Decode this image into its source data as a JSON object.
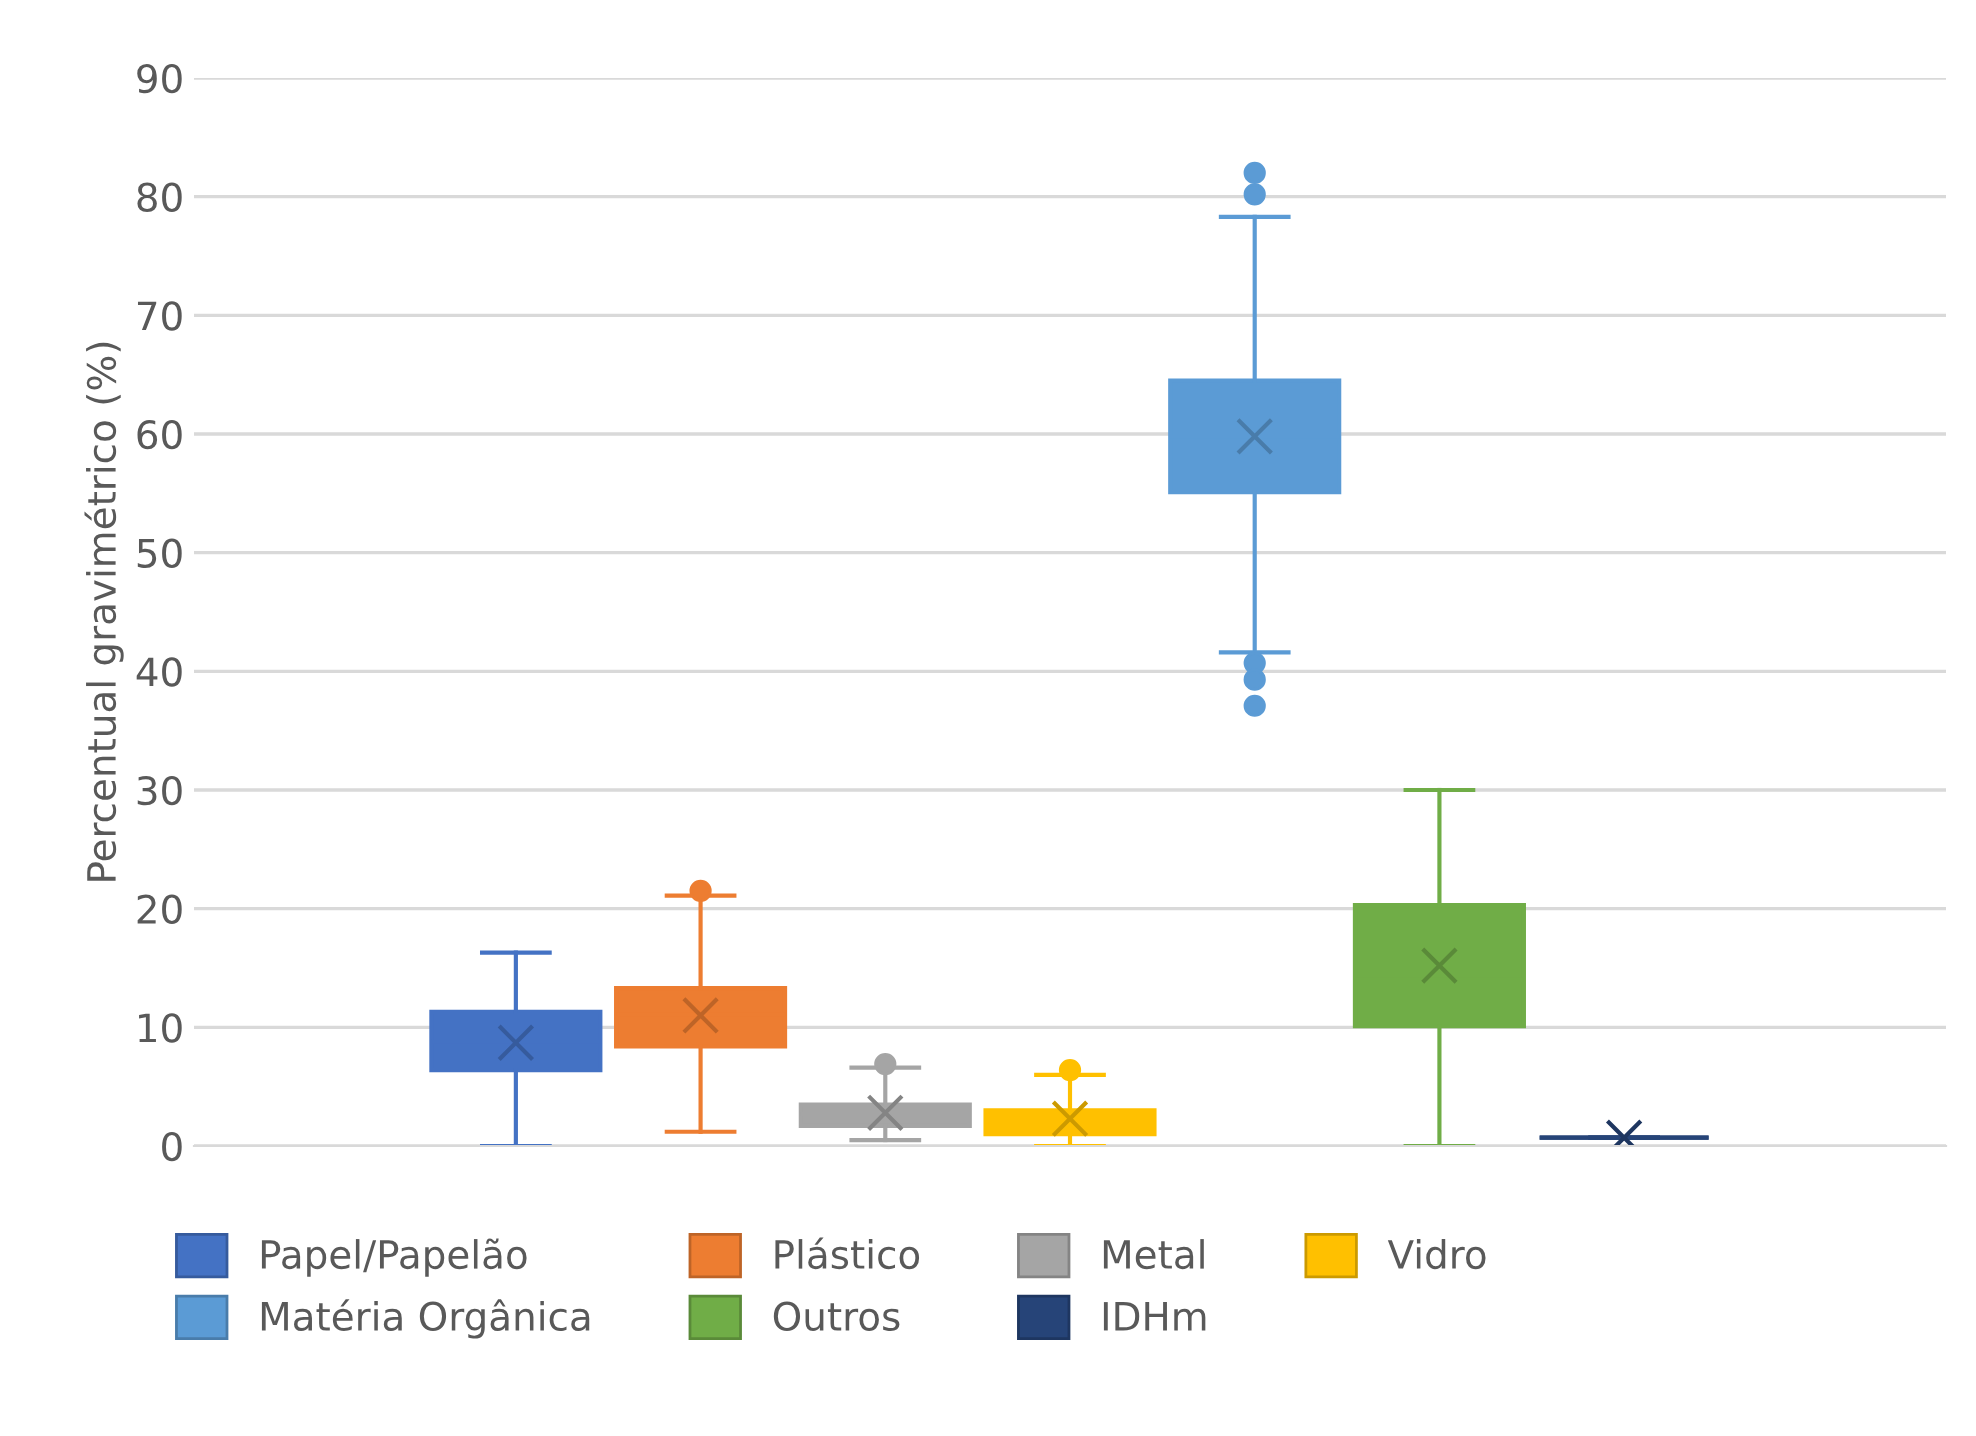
{
  "chart_data": {
    "type": "box",
    "ylabel": "Percentual gravimétrico (%)",
    "categories": [
      null
    ],
    "ylim": [
      0,
      90
    ],
    "yticks": [
      0,
      10,
      20,
      30,
      40,
      50,
      60,
      70,
      80,
      90
    ],
    "grid": "y",
    "legend": "bottom",
    "series": [
      {
        "name": "Papel/Papelão",
        "color": "#4472c4",
        "boxes": [
          {
            "low": 0,
            "q1": 6.4,
            "median": 8.8,
            "q3": 11.3,
            "high": 16.3,
            "mean": 8.7
          }
        ]
      },
      {
        "name": "Plástico",
        "color": "#ed7d31",
        "boxes": [
          {
            "low": 1.2,
            "q1": 8.4,
            "median": 11.1,
            "q3": 13.3,
            "high": 21.1,
            "mean": 11.0,
            "outliers": [
              21.5
            ]
          }
        ]
      },
      {
        "name": "Metal",
        "color": "#a5a5a5",
        "boxes": [
          {
            "low": 0.5,
            "q1": 1.7,
            "median": 2.7,
            "q3": 3.5,
            "high": 6.6,
            "mean": 2.8,
            "outliers": [
              6.9
            ]
          }
        ]
      },
      {
        "name": "Vidro",
        "color": "#ffc000",
        "boxes": [
          {
            "low": 0,
            "q1": 1.0,
            "median": 2.0,
            "q3": 3.0,
            "high": 6.0,
            "mean": 2.3,
            "outliers": [
              6.4
            ]
          }
        ]
      },
      {
        "name": "Matéria Orgânica",
        "color": "#5b9bd5",
        "boxes": [
          {
            "low": 41.6,
            "q1": 55.1,
            "median": 59.8,
            "q3": 64.5,
            "high": 78.3,
            "mean": 59.8,
            "outliers": [
              82.0,
              80.2,
              40.7,
              39.3,
              37.1
            ]
          }
        ]
      },
      {
        "name": "Outros",
        "color": "#70ad47",
        "boxes": [
          {
            "low": 0,
            "q1": 10.1,
            "median": 14.0,
            "q3": 20.3,
            "high": 30.0,
            "mean": 15.2
          }
        ]
      },
      {
        "name": "IDHm",
        "color": "#264478",
        "boxes": [
          {
            "low": 0.7,
            "q1": 0.7,
            "median": 0.7,
            "q3": 0.7,
            "high": 0.7,
            "mean": 0.7
          }
        ]
      }
    ]
  }
}
